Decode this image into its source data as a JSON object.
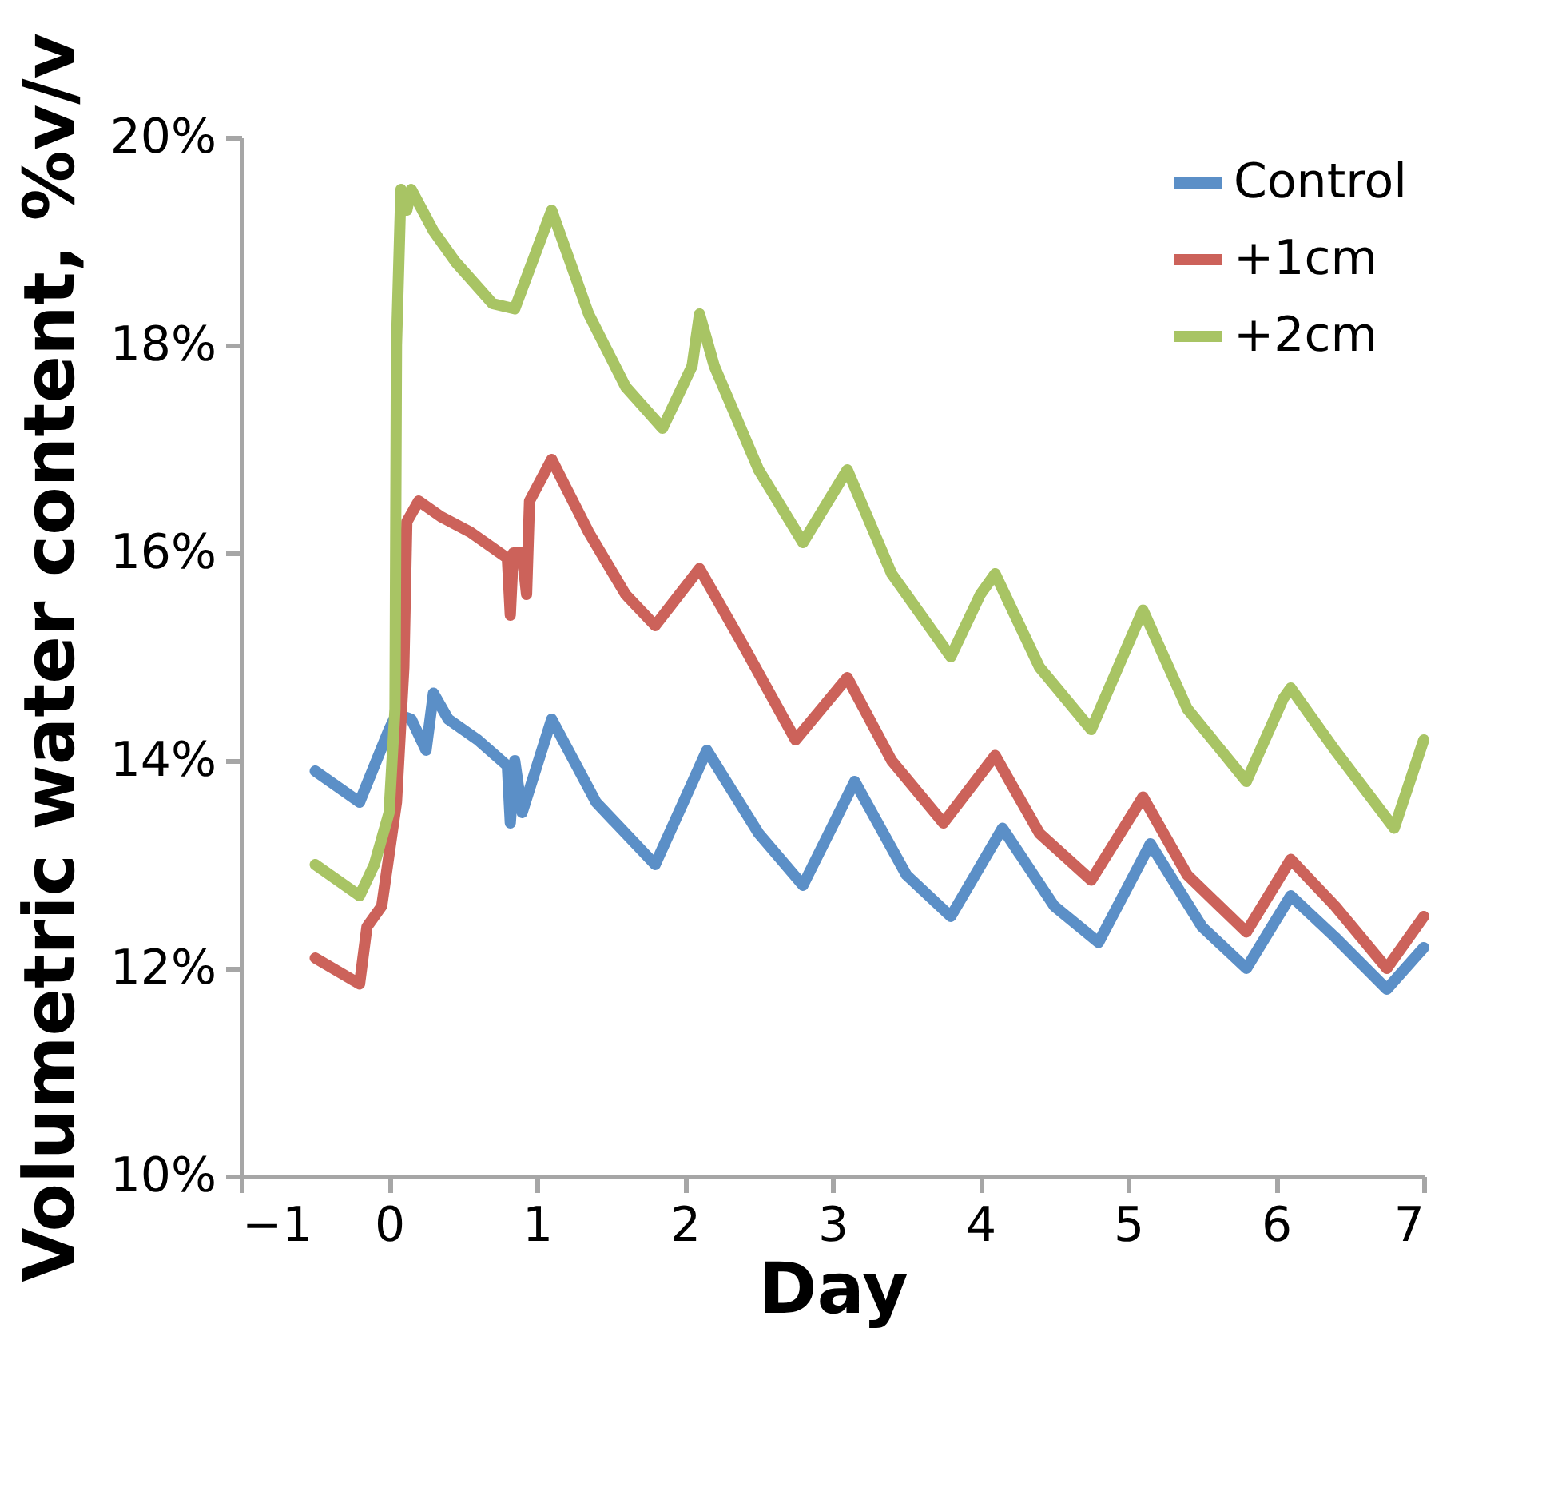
{
  "chart_data": {
    "type": "line",
    "xlabel": "Day",
    "ylabel": "Volumetric water content, %v/v",
    "xlim": [
      -1,
      7
    ],
    "xticks": [
      -1,
      0,
      1,
      2,
      3,
      4,
      5,
      6,
      7
    ],
    "ylim": [
      10,
      20
    ],
    "yticks": [
      {
        "value": 10,
        "label": "10%"
      },
      {
        "value": 12,
        "label": "12%"
      },
      {
        "value": 14,
        "label": "14%"
      },
      {
        "value": 16,
        "label": "16%"
      },
      {
        "value": 18,
        "label": "18%"
      },
      {
        "value": 20,
        "label": "20%"
      }
    ],
    "legend": "top right",
    "grid": false,
    "line_style": "solid",
    "series": [
      {
        "name": "Control",
        "color": "#5b8fc7",
        "x": [
          -0.5,
          -0.2,
          0.0,
          0.05,
          0.15,
          0.25,
          0.3,
          0.4,
          0.6,
          0.8,
          0.82,
          0.85,
          0.9,
          1.1,
          1.4,
          1.8,
          2.15,
          2.5,
          2.8,
          3.15,
          3.5,
          3.8,
          4.15,
          4.5,
          4.8,
          5.15,
          5.5,
          5.8,
          6.1,
          6.4,
          6.75,
          7.0
        ],
        "values": [
          13.9,
          13.6,
          14.3,
          14.45,
          14.4,
          14.1,
          14.65,
          14.4,
          14.2,
          13.95,
          13.4,
          14.0,
          13.5,
          14.4,
          13.6,
          13.0,
          14.1,
          13.3,
          12.8,
          13.8,
          12.9,
          12.5,
          13.35,
          12.6,
          12.25,
          13.2,
          12.4,
          12.0,
          12.7,
          12.3,
          11.8,
          12.2
        ]
      },
      {
        "name": "+1cm",
        "color": "#cc625a",
        "x": [
          -0.5,
          -0.2,
          -0.15,
          -0.05,
          0.05,
          0.1,
          0.12,
          0.2,
          0.35,
          0.55,
          0.8,
          0.82,
          0.84,
          0.9,
          0.93,
          0.95,
          1.1,
          1.35,
          1.6,
          1.8,
          2.1,
          2.4,
          2.75,
          3.1,
          3.4,
          3.75,
          4.1,
          4.4,
          4.75,
          5.1,
          5.4,
          5.8,
          6.1,
          6.4,
          6.75,
          7.0
        ],
        "values": [
          12.1,
          11.85,
          12.4,
          12.6,
          13.6,
          14.9,
          16.3,
          16.5,
          16.35,
          16.2,
          15.95,
          15.4,
          16.0,
          16.0,
          15.6,
          16.5,
          16.9,
          16.2,
          15.6,
          15.3,
          15.85,
          15.1,
          14.2,
          14.8,
          14.0,
          13.4,
          14.05,
          13.3,
          12.85,
          13.65,
          12.9,
          12.35,
          13.05,
          12.6,
          12.0,
          12.5
        ]
      },
      {
        "name": "+2cm",
        "color": "#a8c464",
        "x": [
          -0.5,
          -0.2,
          -0.1,
          0.0,
          0.04,
          0.05,
          0.08,
          0.12,
          0.15,
          0.3,
          0.45,
          0.7,
          0.85,
          1.1,
          1.35,
          1.6,
          1.85,
          2.05,
          2.1,
          2.2,
          2.5,
          2.8,
          3.1,
          3.4,
          3.8,
          4.0,
          4.1,
          4.4,
          4.75,
          5.1,
          5.4,
          5.8,
          6.05,
          6.1,
          6.4,
          6.8,
          7.0
        ],
        "values": [
          13.0,
          12.7,
          13.0,
          13.5,
          14.5,
          18.0,
          19.5,
          19.3,
          19.5,
          19.1,
          18.8,
          18.4,
          18.35,
          19.3,
          18.3,
          17.6,
          17.2,
          17.8,
          18.3,
          17.8,
          16.8,
          16.1,
          16.8,
          15.8,
          15.0,
          15.6,
          15.8,
          14.9,
          14.3,
          15.45,
          14.5,
          13.8,
          14.6,
          14.7,
          14.1,
          13.35,
          14.2
        ]
      }
    ]
  }
}
